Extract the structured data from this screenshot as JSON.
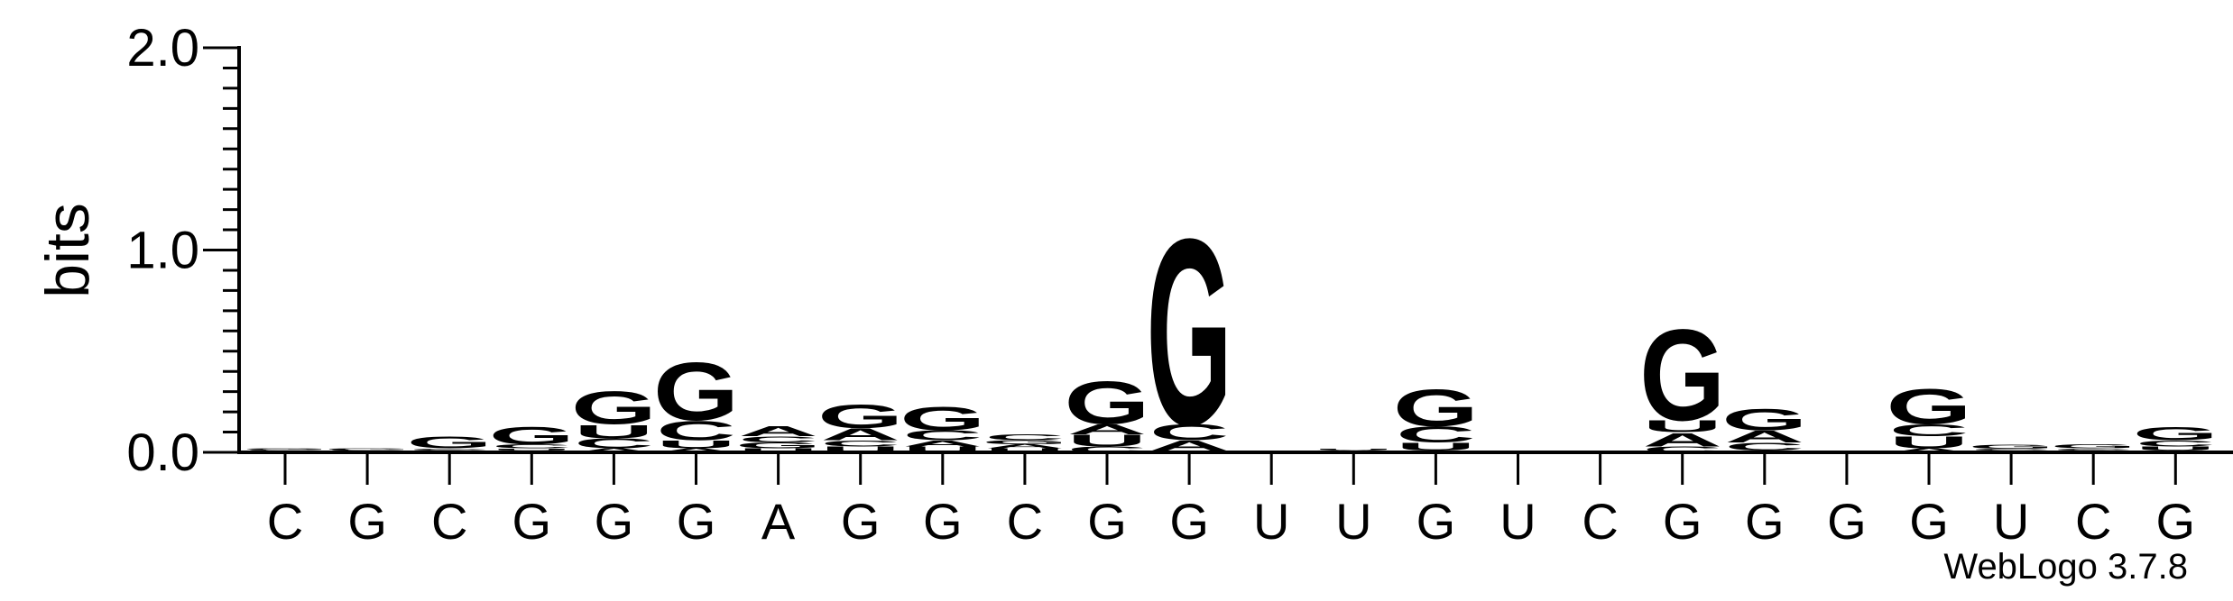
{
  "chart_data": {
    "type": "sequence-logo",
    "ylabel": "bits",
    "ylim": [
      0,
      2.0
    ],
    "yticks": [
      {
        "value": 0.0,
        "label": "0.0"
      },
      {
        "value": 1.0,
        "label": "1.0"
      },
      {
        "value": 2.0,
        "label": "2.0"
      }
    ],
    "x_labels": [
      "C",
      "G",
      "C",
      "G",
      "G",
      "G",
      "A",
      "G",
      "G",
      "C",
      "G",
      "G",
      "U",
      "U",
      "G",
      "U",
      "C",
      "G",
      "G",
      "G",
      "G",
      "U",
      "C",
      "G"
    ],
    "colors": {
      "G": "#0000ff",
      "C": "#0000ff",
      "A": "#ff8c00",
      "U": "#ff8c00"
    },
    "stacks": [
      [
        {
          "base": "A",
          "bits": 0.004
        },
        {
          "base": "U",
          "bits": 0.004
        },
        {
          "base": "C",
          "bits": 0.006
        },
        {
          "base": "G",
          "bits": 0.006
        }
      ],
      [
        {
          "base": "U",
          "bits": 0.003
        },
        {
          "base": "A",
          "bits": 0.003
        },
        {
          "base": "C",
          "bits": 0.005
        },
        {
          "base": "G",
          "bits": 0.009
        }
      ],
      [
        {
          "base": "U",
          "bits": 0.004
        },
        {
          "base": "A",
          "bits": 0.006
        },
        {
          "base": "C",
          "bits": 0.01
        },
        {
          "base": "G",
          "bits": 0.06
        }
      ],
      [
        {
          "base": "A",
          "bits": 0.01
        },
        {
          "base": "U",
          "bits": 0.01
        },
        {
          "base": "C",
          "bits": 0.02
        },
        {
          "base": "G",
          "bits": 0.09
        }
      ],
      [
        {
          "base": "A",
          "bits": 0.02
        },
        {
          "base": "C",
          "bits": 0.05
        },
        {
          "base": "U",
          "bits": 0.07
        },
        {
          "base": "G",
          "bits": 0.17
        }
      ],
      [
        {
          "base": "A",
          "bits": 0.02
        },
        {
          "base": "U",
          "bits": 0.04
        },
        {
          "base": "C",
          "bits": 0.1
        },
        {
          "base": "G",
          "bits": 0.3
        }
      ],
      [
        {
          "base": "U",
          "bits": 0.02
        },
        {
          "base": "G",
          "bits": 0.03
        },
        {
          "base": "C",
          "bits": 0.03
        },
        {
          "base": "A",
          "bits": 0.05
        }
      ],
      [
        {
          "base": "U",
          "bits": 0.03
        },
        {
          "base": "C",
          "bits": 0.03
        },
        {
          "base": "A",
          "bits": 0.06
        },
        {
          "base": "G",
          "bits": 0.12
        }
      ],
      [
        {
          "base": "U",
          "bits": 0.03
        },
        {
          "base": "A",
          "bits": 0.03
        },
        {
          "base": "C",
          "bits": 0.05
        },
        {
          "base": "G",
          "bits": 0.12
        }
      ],
      [
        {
          "base": "U",
          "bits": 0.02
        },
        {
          "base": "A",
          "bits": 0.02
        },
        {
          "base": "G",
          "bits": 0.02
        },
        {
          "base": "C",
          "bits": 0.03
        }
      ],
      [
        {
          "base": "C",
          "bits": 0.03
        },
        {
          "base": "U",
          "bits": 0.06
        },
        {
          "base": "A",
          "bits": 0.05
        },
        {
          "base": "G",
          "bits": 0.22
        }
      ],
      [
        {
          "base": "U",
          "bits": 0.01
        },
        {
          "base": "A",
          "bits": 0.05
        },
        {
          "base": "C",
          "bits": 0.08
        },
        {
          "base": "G",
          "bits": 0.96
        }
      ],
      [
        {
          "base": "G",
          "bits": 0.002
        },
        {
          "base": "C",
          "bits": 0.002
        },
        {
          "base": "A",
          "bits": 0.002
        },
        {
          "base": "U",
          "bits": 0.003
        }
      ],
      [
        {
          "base": "G",
          "bits": 0.004
        },
        {
          "base": "C",
          "bits": 0.004
        },
        {
          "base": "A",
          "bits": 0.004
        },
        {
          "base": "U",
          "bits": 0.006
        }
      ],
      [
        {
          "base": "A",
          "bits": 0.01
        },
        {
          "base": "U",
          "bits": 0.04
        },
        {
          "base": "C",
          "bits": 0.08
        },
        {
          "base": "G",
          "bits": 0.19
        }
      ],
      [
        {
          "base": "G",
          "bits": 0.002
        },
        {
          "base": "C",
          "bits": 0.002
        },
        {
          "base": "A",
          "bits": 0.002
        },
        {
          "base": "U",
          "bits": 0.002
        }
      ],
      [
        {
          "base": "G",
          "bits": 0.002
        },
        {
          "base": "U",
          "bits": 0.002
        },
        {
          "base": "A",
          "bits": 0.002
        },
        {
          "base": "C",
          "bits": 0.002
        }
      ],
      [
        {
          "base": "C",
          "bits": 0.03
        },
        {
          "base": "A",
          "bits": 0.07
        },
        {
          "base": "U",
          "bits": 0.06
        },
        {
          "base": "G",
          "bits": 0.47
        }
      ],
      [
        {
          "base": "U",
          "bits": 0.01
        },
        {
          "base": "C",
          "bits": 0.04
        },
        {
          "base": "A",
          "bits": 0.06
        },
        {
          "base": "G",
          "bits": 0.11
        }
      ],
      [
        {
          "base": "G",
          "bits": 0.002
        },
        {
          "base": "C",
          "bits": 0.002
        },
        {
          "base": "A",
          "bits": 0.002
        },
        {
          "base": "U",
          "bits": 0.002
        }
      ],
      [
        {
          "base": "A",
          "bits": 0.02
        },
        {
          "base": "U",
          "bits": 0.06
        },
        {
          "base": "C",
          "bits": 0.06
        },
        {
          "base": "G",
          "bits": 0.18
        }
      ],
      [
        {
          "base": "A",
          "bits": 0.004
        },
        {
          "base": "U",
          "bits": 0.004
        },
        {
          "base": "C",
          "bits": 0.01
        },
        {
          "base": "G",
          "bits": 0.02
        }
      ],
      [
        {
          "base": "U",
          "bits": 0.004
        },
        {
          "base": "A",
          "bits": 0.006
        },
        {
          "base": "C",
          "bits": 0.01
        },
        {
          "base": "G",
          "bits": 0.02
        }
      ],
      [
        {
          "base": "A",
          "bits": 0.01
        },
        {
          "base": "U",
          "bits": 0.02
        },
        {
          "base": "C",
          "bits": 0.03
        },
        {
          "base": "G",
          "bits": 0.07
        }
      ]
    ]
  },
  "footer": {
    "credit": "WebLogo 3.7.8"
  }
}
